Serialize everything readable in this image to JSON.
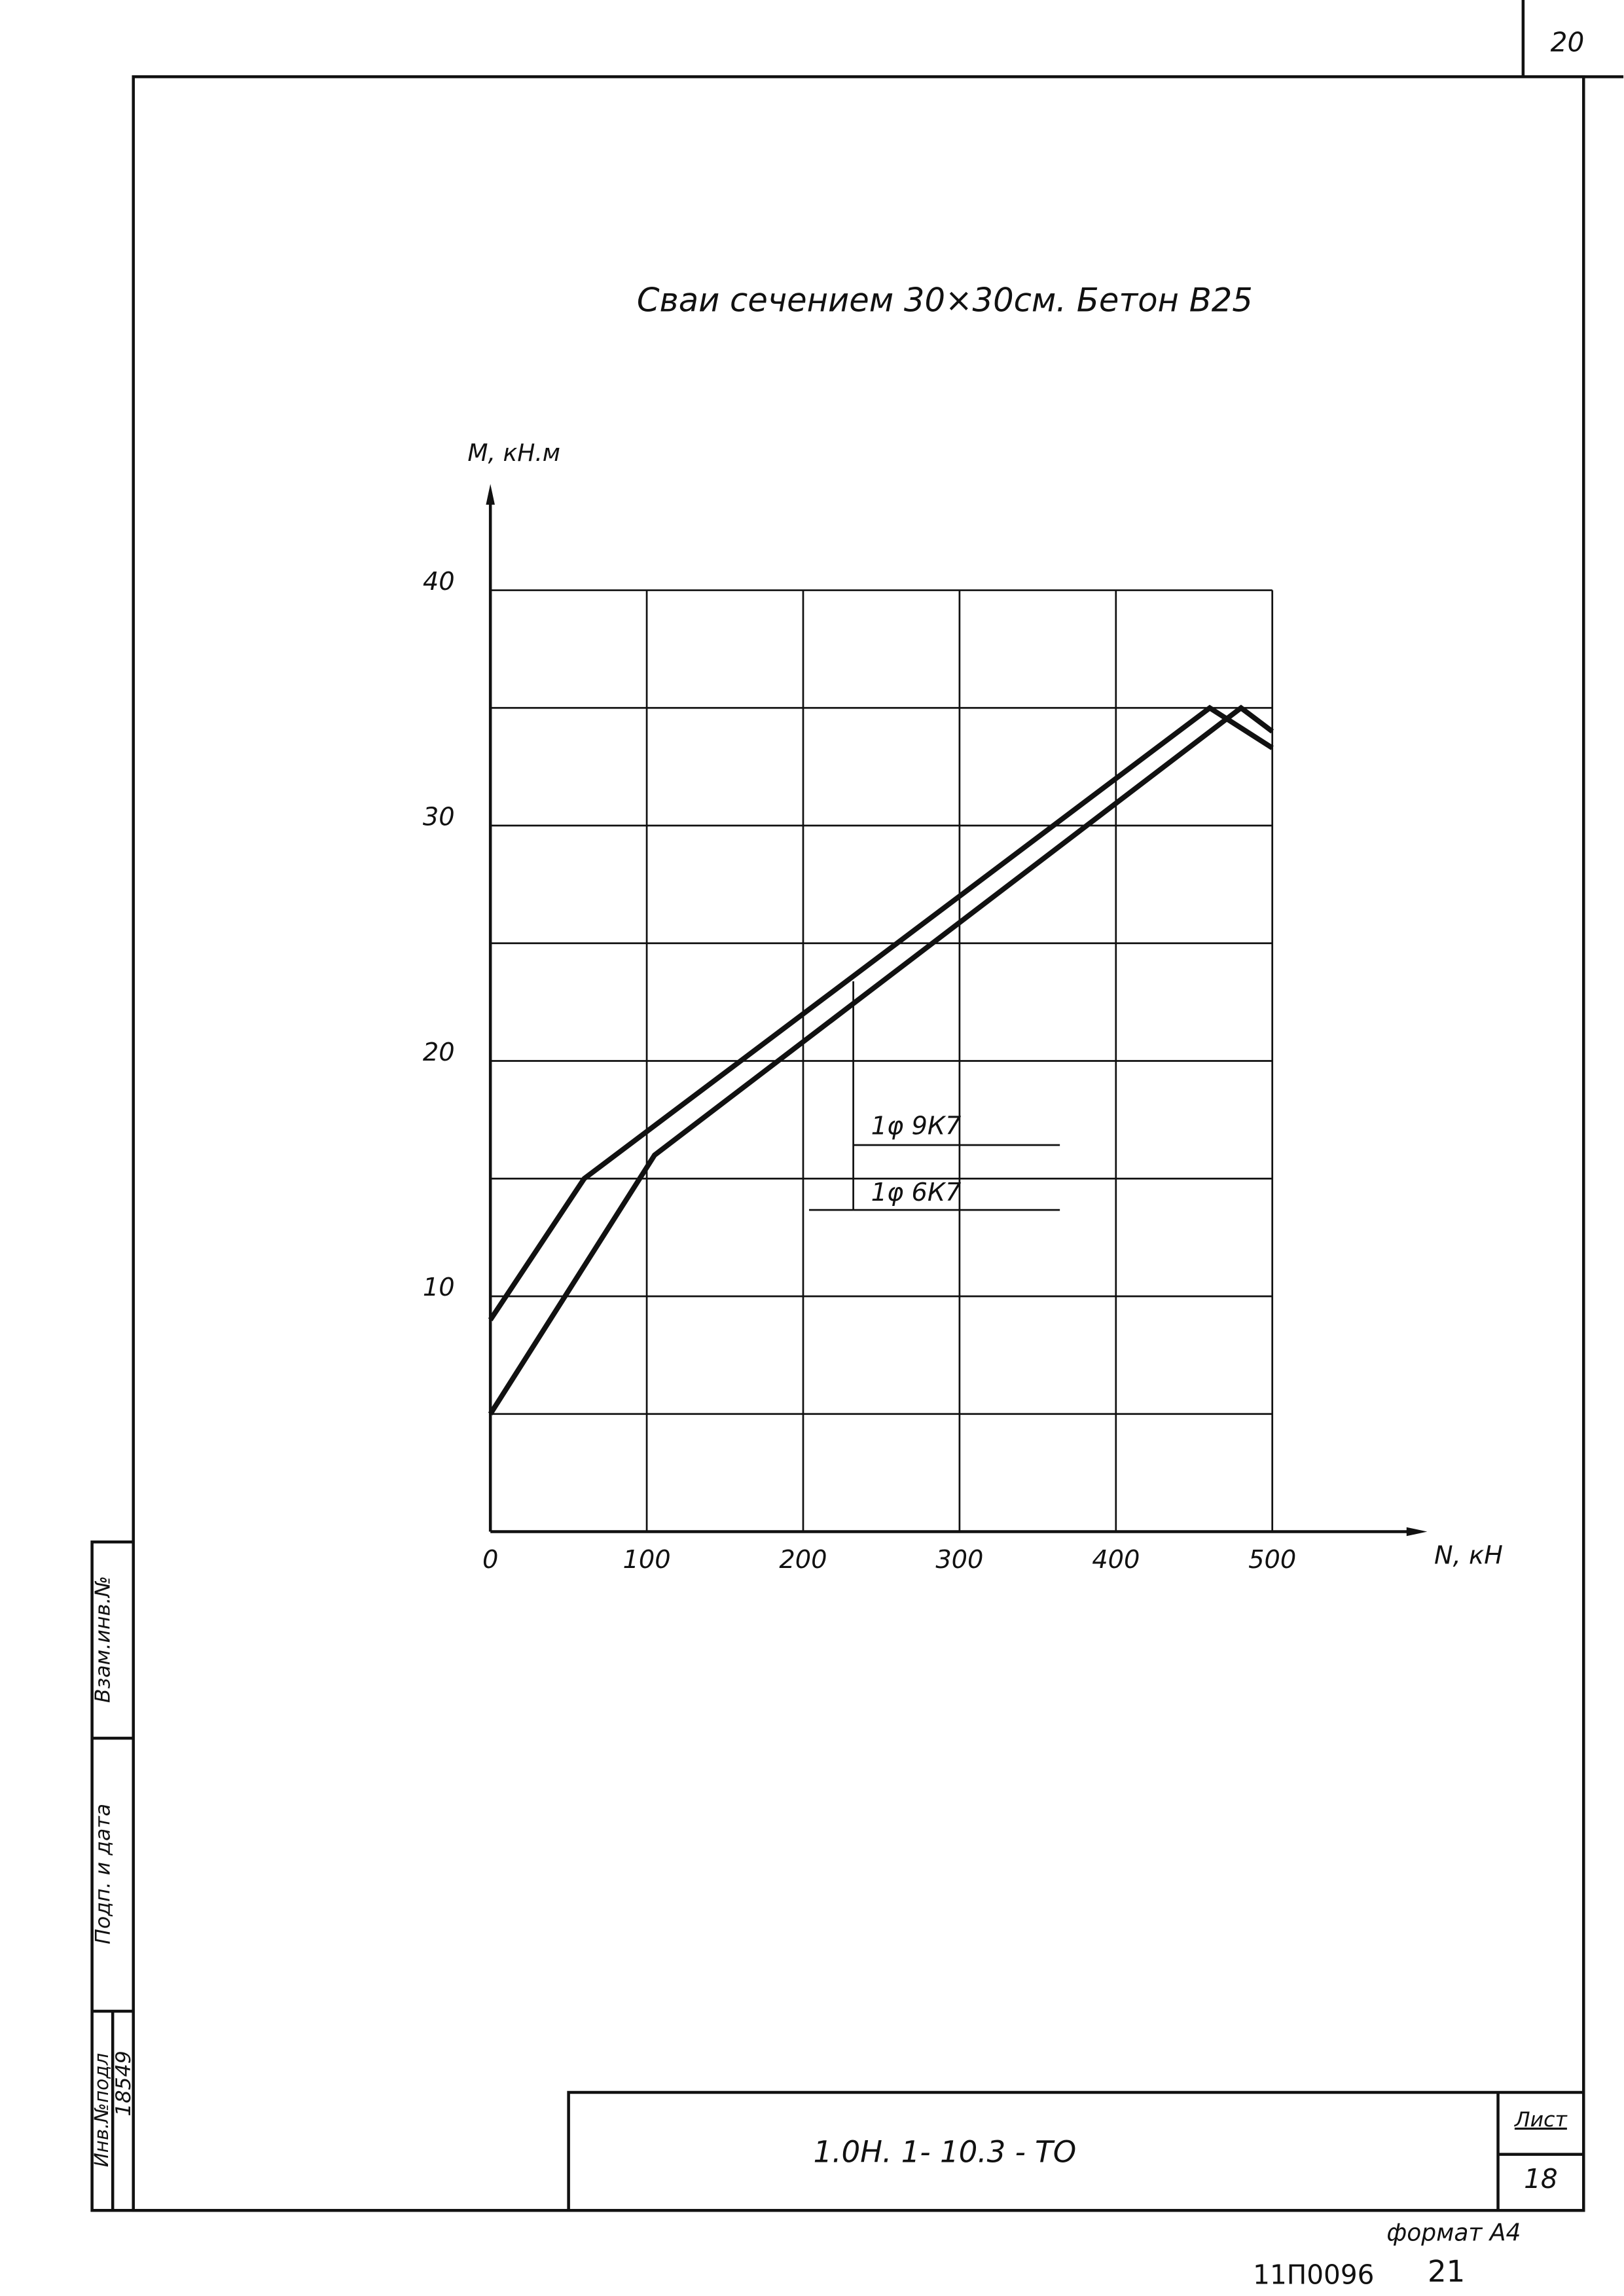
{
  "chart_data": {
    "type": "line",
    "title": "Сваи сечением 30×30см. Бетон В25",
    "y_label": "M, кН.м",
    "x_label": "N, кН",
    "series": [
      {
        "name": "1φ 9К7",
        "color": "#111111",
        "x": [
          0,
          60,
          460,
          500
        ],
        "values": [
          9,
          15,
          35,
          33.3
        ]
      },
      {
        "name": "1φ 6К7",
        "color": "#111111",
        "x": [
          0,
          105,
          480,
          500
        ],
        "values": [
          5,
          16,
          35,
          34
        ]
      }
    ],
    "xlim": [
      0,
      500
    ],
    "xticks": [
      0,
      100,
      200,
      300,
      400,
      500
    ],
    "ylim": [
      0,
      40
    ],
    "yticks": [
      10,
      20,
      30,
      40
    ],
    "minor_yticks": [
      5,
      15,
      25,
      35
    ],
    "grid": true
  },
  "sheet": {
    "page_number": "20",
    "designation": "1.0Н. 1- 10.3 - ТО",
    "sheet_label": "Лист",
    "sheet_number": "18",
    "format": "формат А4",
    "archive_code": "11П0096",
    "archive_page": "21",
    "side": {
      "inv_orig": "Инв.№подл",
      "sign_date": "Подп. и дата",
      "replaces": "Взам.инв.№",
      "inv_number": "18549"
    }
  }
}
